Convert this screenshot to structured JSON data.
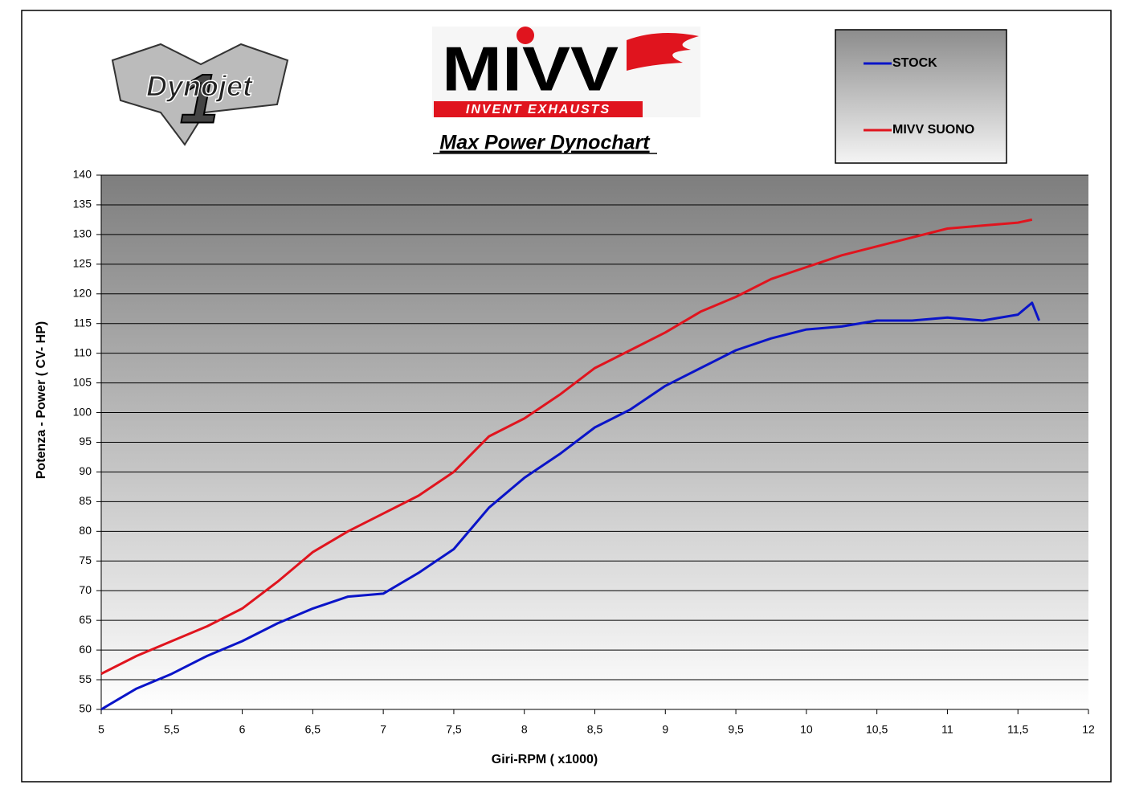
{
  "logos": {
    "dynojet_number": "1",
    "dynojet": "Dynojet",
    "mivv": "MIVV",
    "mivv_tagline": "INVENT EXHAUSTS"
  },
  "chart_data": {
    "type": "line",
    "title": "Max Power Dynochart",
    "x_label": "Giri-RPM ( x1000)",
    "y_label": "Potenza - Power ( CV- HP)",
    "xlim": [
      5,
      12
    ],
    "xticks": [
      5,
      {
        "value": 5.5,
        "label": "5,5"
      },
      6,
      {
        "value": 6.5,
        "label": "6,5"
      },
      7,
      {
        "value": 7.5,
        "label": "7,5"
      },
      8,
      {
        "value": 8.5,
        "label": "8,5"
      },
      9,
      {
        "value": 9.5,
        "label": "9,5"
      },
      10,
      {
        "value": 10.5,
        "label": "10,5"
      },
      11,
      {
        "value": 11.5,
        "label": "11,5"
      },
      12
    ],
    "ylim": [
      50,
      140
    ],
    "yticks": [
      50,
      55,
      60,
      65,
      70,
      75,
      80,
      85,
      90,
      95,
      100,
      105,
      110,
      115,
      120,
      125,
      130,
      135,
      140
    ],
    "grid": true,
    "legend": "top-right",
    "series": [
      {
        "name": "STOCK",
        "color": "#0a14c8",
        "x": [
          5,
          5.25,
          5.5,
          5.75,
          6,
          6.25,
          6.5,
          6.75,
          7,
          7.25,
          7.5,
          7.75,
          8,
          8.25,
          8.5,
          8.75,
          9,
          9.25,
          9.5,
          9.75,
          10,
          10.25,
          10.5,
          10.75,
          11,
          11.25,
          11.5,
          11.6,
          11.65
        ],
        "values": [
          50,
          53.5,
          56,
          59,
          61.5,
          64.5,
          67,
          69,
          69.5,
          73,
          77,
          84,
          89,
          93,
          97.5,
          100.5,
          104.5,
          107.5,
          110.5,
          112.5,
          114,
          114.5,
          115.5,
          115.5,
          116,
          115.5,
          116.5,
          118.5,
          115.5
        ]
      },
      {
        "name": "MIVV SUONO",
        "color": "#e0141e",
        "x": [
          5,
          5.25,
          5.5,
          5.75,
          6,
          6.25,
          6.5,
          6.75,
          7,
          7.25,
          7.5,
          7.75,
          8,
          8.25,
          8.5,
          8.75,
          9,
          9.25,
          9.5,
          9.75,
          10,
          10.25,
          10.5,
          10.75,
          11,
          11.25,
          11.5,
          11.6
        ],
        "values": [
          56,
          59,
          61.5,
          64,
          67,
          71.5,
          76.5,
          80,
          83,
          86,
          90,
          96,
          99,
          103,
          107.5,
          110.5,
          113.5,
          117,
          119.5,
          122.5,
          124.5,
          126.5,
          128,
          129.5,
          131,
          131.5,
          132,
          132.5
        ]
      }
    ]
  }
}
